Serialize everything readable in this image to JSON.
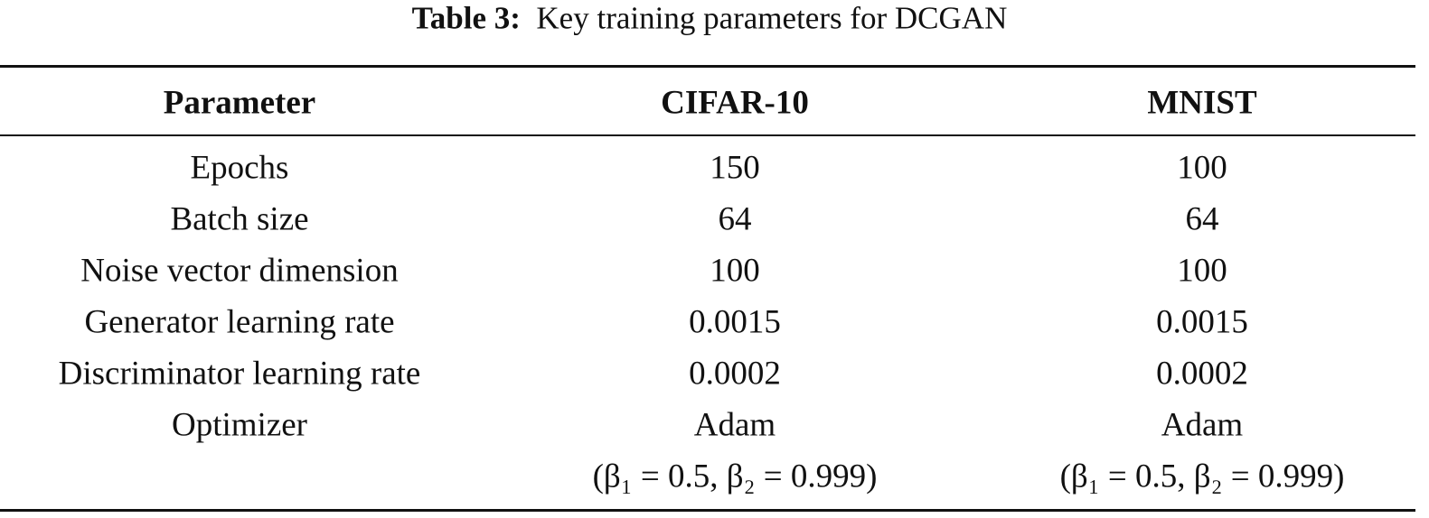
{
  "caption": {
    "label": "Table 3:",
    "text": "Key training parameters for DCGAN"
  },
  "table": {
    "header": [
      "Parameter",
      "CIFAR-10",
      "MNIST"
    ],
    "rows": [
      [
        "Epochs",
        "150",
        "100"
      ],
      [
        "Batch size",
        "64",
        "64"
      ],
      [
        "Noise vector dimension",
        "100",
        "100"
      ],
      [
        "Generator learning rate",
        "0.0015",
        "0.0015"
      ],
      [
        "Discriminator learning rate",
        "0.0002",
        "0.0002"
      ],
      [
        "Optimizer",
        [
          "Adam",
          "(β₁ = 0.5, β₂ = 0.999)"
        ],
        [
          "Adam",
          "(β₁ = 0.5, β₂ = 0.999)"
        ]
      ]
    ]
  }
}
